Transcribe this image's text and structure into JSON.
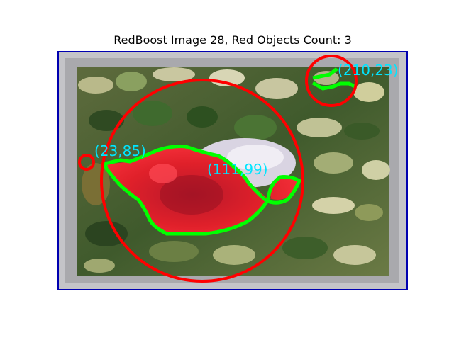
{
  "title": "RedBoost Image 28, Red Objects Count: 3",
  "colors": {
    "circle": "#ff0000",
    "contour": "#00ff00",
    "label": "#00e5ff",
    "axes_border": "#0000b0"
  },
  "detections": [
    {
      "label": "(23,85)"
    },
    {
      "label": "(111,99)"
    },
    {
      "label": "(210,23)"
    }
  ]
}
